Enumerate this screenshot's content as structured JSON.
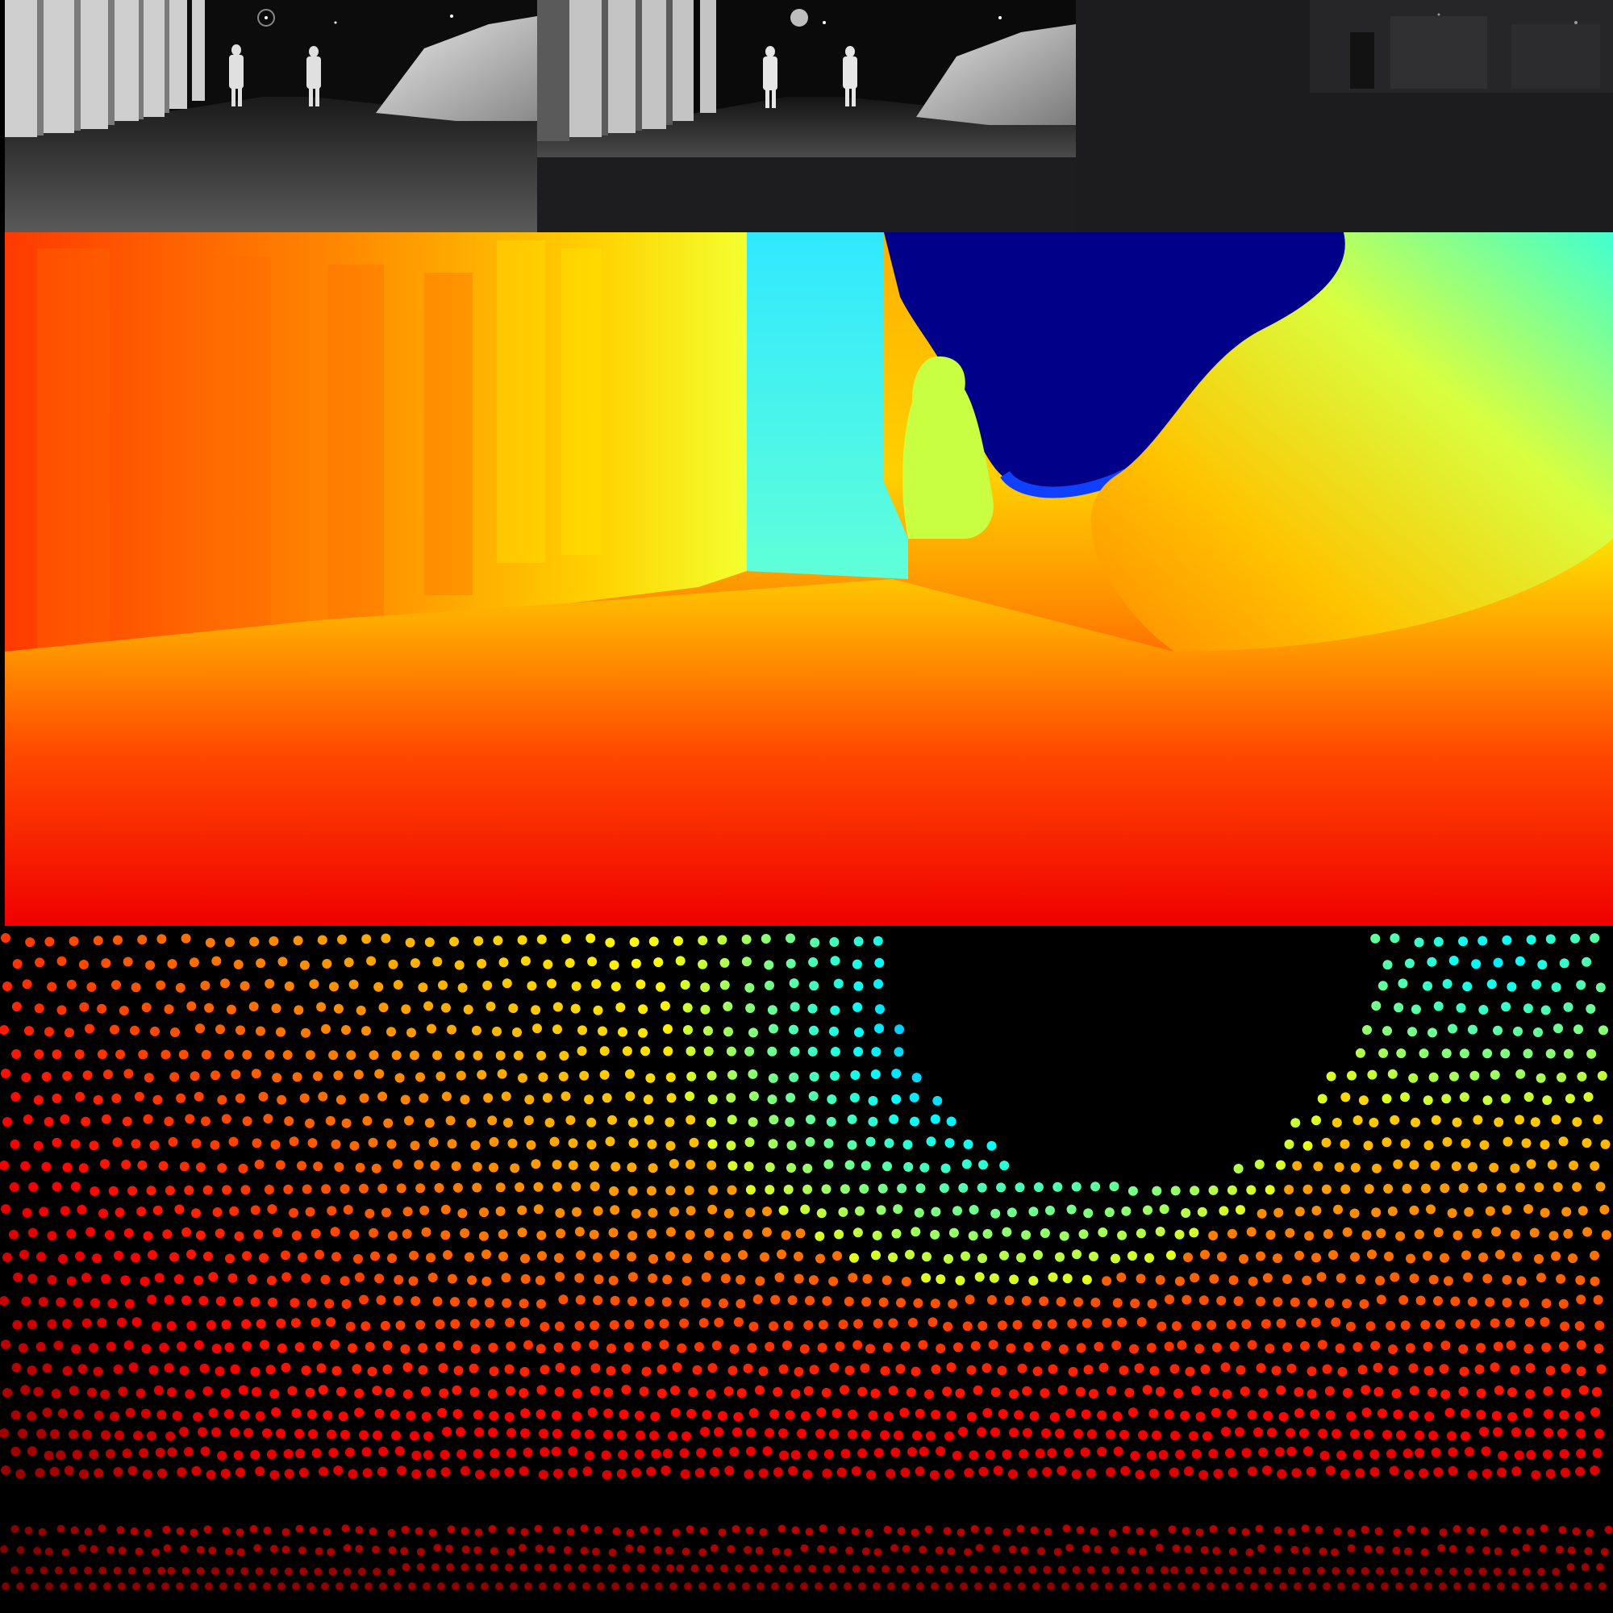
{
  "figure": {
    "panels": [
      {
        "id": "left-camera-view",
        "kind": "grayscale night street scene"
      },
      {
        "id": "right-camera-view",
        "kind": "grayscale night street scene"
      },
      {
        "id": "dark-camera-view",
        "kind": "dark frame"
      },
      {
        "id": "dense-depth-map",
        "kind": "jet colormap depth estimate"
      },
      {
        "id": "sparse-lidar-points",
        "kind": "jet colored sparse point cloud"
      }
    ],
    "colormap": [
      "#00007f",
      "#0000ff",
      "#00ffff",
      "#ffff00",
      "#ff7f00",
      "#ff0000"
    ]
  }
}
